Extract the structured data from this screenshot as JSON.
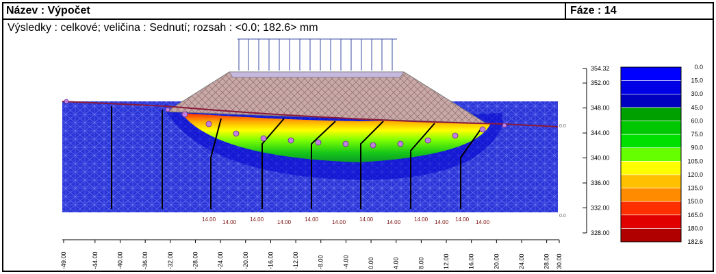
{
  "header": {
    "title": "Název : Výpočet",
    "phase": "Fáze : 14"
  },
  "results_line": "Výsledky : celkové; veličina : Sednutí; rozsah : <0.0; 182.6> mm",
  "x_axis": {
    "ticks": [
      "-49.00",
      "-44.00",
      "-40.00",
      "-36.00",
      "-32.00",
      "-28.00",
      "-24.00",
      "-20.00",
      "-16.00",
      "-12.00",
      "-8.00",
      "-4.00",
      "0.00",
      "4.00",
      "8.00",
      "12.00",
      "16.00",
      "20.00",
      "24.00",
      "28.00",
      "30.00"
    ]
  },
  "y_axis": {
    "ticks": [
      "354.32",
      "352.00",
      "348.00",
      "344.00",
      "340.00",
      "336.00",
      "332.00",
      "328.00"
    ]
  },
  "legend": {
    "values": [
      "0.0",
      "15.0",
      "30.0",
      "45.0",
      "60.0",
      "75.0",
      "90.0",
      "105.0",
      "120.0",
      "135.0",
      "150.0",
      "165.0",
      "180.0",
      "182.6"
    ],
    "colors": [
      "#0000ff",
      "#0000e6",
      "#0000c0",
      "#00a000",
      "#00c800",
      "#00e000",
      "#66ff00",
      "#ffff00",
      "#ffc000",
      "#ff8c00",
      "#ff3000",
      "#e00000",
      "#b00000"
    ]
  },
  "model": {
    "side_labels": [
      "0.0",
      "0.0"
    ],
    "bottom_labels": [
      "14.00",
      "14.00",
      "14.00",
      "14.00",
      "14.00",
      "14.00",
      "14.00",
      "14.00",
      "14.00",
      "14.00",
      "14.00",
      "14.00"
    ]
  }
}
